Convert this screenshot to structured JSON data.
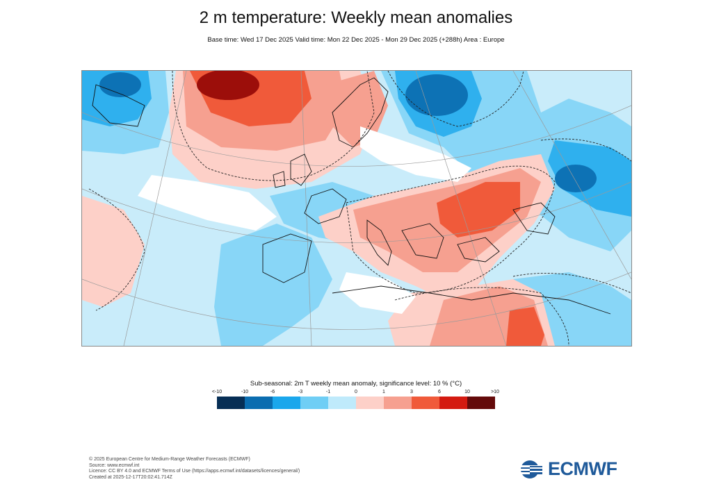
{
  "title": "2 m temperature: Weekly mean anomalies",
  "subtitle": "Base time: Wed 17 Dec 2025 Valid time: Mon 22 Dec 2025 - Mon 29 Dec 2025 (+288h) Area : Europe",
  "legend": {
    "title": "Sub-seasonal: 2m T weekly mean anomaly, significance level: 10 % (°C)",
    "ticks": [
      "<-10",
      "-10",
      "-6",
      "-3",
      "-1",
      "0",
      "1",
      "3",
      "6",
      "10",
      ">10"
    ],
    "colors": [
      "#062e55",
      "#0a6db0",
      "#1aa7ec",
      "#6fcef5",
      "#bfeafb",
      "#fdd0c8",
      "#f6a090",
      "#f05a3a",
      "#d41a10",
      "#640a0a"
    ]
  },
  "colors": {
    "cold_light": "#c9ecfa",
    "cold_mid": "#88d6f7",
    "cold_strong": "#2fb0ee",
    "cold_deep": "#0d72b5",
    "warm_light": "#fdd0c8",
    "warm_mid": "#f6a090",
    "warm_strong": "#f05a3a",
    "warm_deep": "#9c0e0a",
    "neutral": "#ffffff"
  },
  "footer": {
    "line1": "© 2025 European Centre for Medium-Range Weather Forecasts (ECMWF)",
    "line2": "Source: www.ecmwf.int",
    "line3": "Licence: CC BY 4.0 and ECMWF Terms of Use (https://apps.ecmwf.int/datasets/licences/general/)",
    "line4": "Created at 2025-12-17T20:02:41.714Z"
  },
  "logo": {
    "text": "ECMWF"
  }
}
